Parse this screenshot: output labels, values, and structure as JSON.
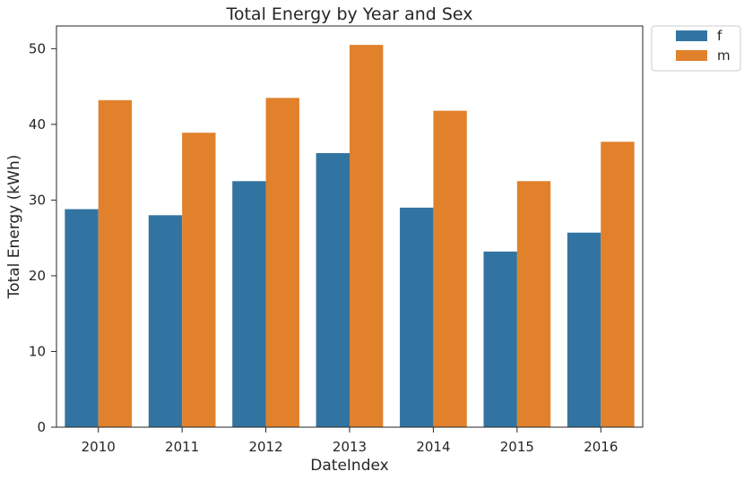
{
  "chart_data": {
    "type": "bar",
    "title": "Total Energy by Year and Sex",
    "xlabel": "DateIndex",
    "ylabel": "Total Energy (kWh)",
    "categories": [
      "2010",
      "2011",
      "2012",
      "2013",
      "2014",
      "2015",
      "2016"
    ],
    "series": [
      {
        "name": "f",
        "color": "#3274a1",
        "values": [
          28.8,
          28.0,
          32.5,
          36.2,
          29.0,
          23.2,
          25.7
        ]
      },
      {
        "name": "m",
        "color": "#e1812c",
        "values": [
          43.2,
          38.9,
          43.5,
          50.5,
          41.8,
          32.5,
          37.7
        ]
      }
    ],
    "ylim": [
      0,
      53
    ],
    "yticks": [
      0,
      10,
      20,
      30,
      40,
      50
    ],
    "grid": false,
    "legend_position": "outside-top-right"
  }
}
